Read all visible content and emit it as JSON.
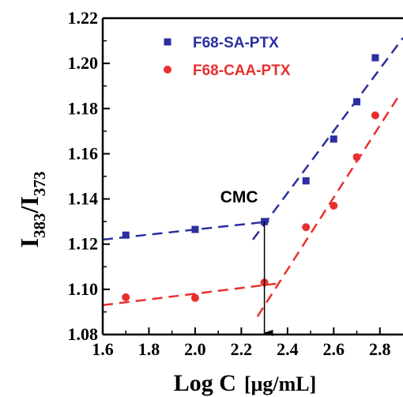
{
  "chart_data": {
    "type": "scatter",
    "title": "",
    "xlabel_main": "Log C",
    "xlabel_unit": "[μg/mL]",
    "ylabel_main": "I",
    "ylabel_sub1": "383",
    "ylabel_sep": "/I",
    "ylabel_sub2": "373",
    "xlim": [
      1.6,
      2.9
    ],
    "ylim": [
      1.08,
      1.22
    ],
    "x_ticks": [
      "1.6",
      "1.8",
      "2.0",
      "2.2",
      "2.4",
      "2.6",
      "2.8"
    ],
    "x_tick_values": [
      1.6,
      1.8,
      2.0,
      2.2,
      2.4,
      2.6,
      2.8
    ],
    "y_ticks": [
      "1.08",
      "1.10",
      "1.12",
      "1.14",
      "1.16",
      "1.18",
      "1.20",
      "1.22"
    ],
    "y_tick_values": [
      1.08,
      1.1,
      1.12,
      1.14,
      1.16,
      1.18,
      1.2,
      1.22
    ],
    "legend_position": "top-right",
    "series": [
      {
        "name": "F68-SA-PTX",
        "color": "#2b2fa0",
        "marker": "square",
        "points": [
          [
            1.7,
            1.124
          ],
          [
            2.0,
            1.1265
          ],
          [
            2.3,
            1.13
          ],
          [
            2.48,
            1.148
          ],
          [
            2.6,
            1.1665
          ],
          [
            2.7,
            1.183
          ],
          [
            2.78,
            1.2025
          ]
        ],
        "fit_lines": [
          {
            "x": [
              1.6,
              2.32
            ],
            "y": [
              1.122,
              1.13
            ]
          },
          {
            "x": [
              2.25,
              2.9
            ],
            "y": [
              1.122,
              1.2113
            ]
          }
        ]
      },
      {
        "name": "F68-CAA-PTX",
        "color": "#e8302f",
        "marker": "circle",
        "points": [
          [
            1.7,
            1.0965
          ],
          [
            2.0,
            1.0962
          ],
          [
            2.3,
            1.103
          ],
          [
            2.48,
            1.1275
          ],
          [
            2.6,
            1.137
          ],
          [
            2.7,
            1.1585
          ],
          [
            2.78,
            1.177
          ]
        ],
        "fit_lines": [
          {
            "x": [
              1.6,
              2.35
            ],
            "y": [
              1.093,
              1.1025
            ]
          },
          {
            "x": [
              2.27,
              2.88
            ],
            "y": [
              1.088,
              1.1853
            ]
          }
        ]
      }
    ],
    "annotations": [
      {
        "text": "CMC",
        "arrow_x": 2.3,
        "arrow_from_y": 1.13,
        "arrow_to_y": 1.08
      }
    ]
  }
}
